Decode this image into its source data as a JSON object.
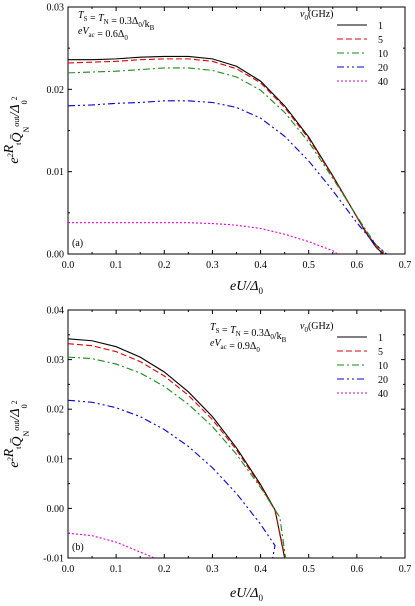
{
  "chart_data": [
    {
      "type": "line",
      "panel_label": "(a)",
      "annotations": [
        "T_S = T_N = 0.3Δ_0/k_B",
        "eV_ac = 0.6Δ_0"
      ],
      "xlabel": "eU/Δ_0",
      "ylabel": "e²R_t Q̄_N^out/Δ_0²",
      "xlim": [
        0.0,
        0.7
      ],
      "ylim": [
        0.0,
        0.03
      ],
      "x_ticks": [
        "0.0",
        "0.1",
        "0.2",
        "0.3",
        "0.4",
        "0.5",
        "0.6",
        "0.7"
      ],
      "y_ticks": [
        "0.00",
        "0.01",
        "0.02",
        "0.03"
      ],
      "legend_title": "ν_0(GHz)",
      "legend_position": "top-right",
      "series": [
        {
          "name": "1",
          "color": "#000000",
          "dash": "solid",
          "x": [
            0,
            0.05,
            0.1,
            0.15,
            0.2,
            0.25,
            0.3,
            0.35,
            0.4,
            0.45,
            0.5,
            0.55,
            0.6,
            0.62,
            0.64,
            0.655
          ],
          "y": [
            0.0236,
            0.0236,
            0.0237,
            0.0239,
            0.024,
            0.024,
            0.0237,
            0.0228,
            0.021,
            0.018,
            0.0142,
            0.0095,
            0.0045,
            0.0025,
            0.0008,
            0.0
          ]
        },
        {
          "name": "5",
          "color": "#e00000",
          "dash": "dash",
          "x": [
            0,
            0.05,
            0.1,
            0.15,
            0.2,
            0.25,
            0.3,
            0.35,
            0.4,
            0.45,
            0.5,
            0.55,
            0.6,
            0.62,
            0.64,
            0.657
          ],
          "y": [
            0.0232,
            0.0233,
            0.0234,
            0.0236,
            0.0237,
            0.0237,
            0.0234,
            0.0225,
            0.0208,
            0.0178,
            0.014,
            0.0094,
            0.0045,
            0.0026,
            0.0009,
            0.0
          ]
        },
        {
          "name": "10",
          "color": "#1a8a1a",
          "dash": "dashdot",
          "x": [
            0,
            0.05,
            0.1,
            0.15,
            0.2,
            0.25,
            0.3,
            0.35,
            0.4,
            0.45,
            0.5,
            0.55,
            0.6,
            0.62,
            0.64,
            0.66
          ],
          "y": [
            0.022,
            0.0221,
            0.0222,
            0.0224,
            0.0226,
            0.0226,
            0.0223,
            0.0215,
            0.0199,
            0.0172,
            0.0136,
            0.0092,
            0.0046,
            0.0028,
            0.0011,
            0.0
          ]
        },
        {
          "name": "20",
          "color": "#0000cc",
          "dash": "dashdotdot",
          "x": [
            0,
            0.05,
            0.1,
            0.15,
            0.2,
            0.25,
            0.3,
            0.35,
            0.4,
            0.45,
            0.5,
            0.55,
            0.6,
            0.62,
            0.64,
            0.662
          ],
          "y": [
            0.018,
            0.0181,
            0.0183,
            0.0184,
            0.0186,
            0.0186,
            0.0184,
            0.0178,
            0.0165,
            0.0143,
            0.0113,
            0.0077,
            0.0038,
            0.0024,
            0.0011,
            0.0
          ]
        },
        {
          "name": "40",
          "color": "#dd00dd",
          "dash": "dot",
          "x": [
            0,
            0.05,
            0.1,
            0.15,
            0.2,
            0.25,
            0.3,
            0.35,
            0.4,
            0.45,
            0.5,
            0.55,
            0.56
          ],
          "y": [
            0.0038,
            0.0038,
            0.0038,
            0.0038,
            0.0038,
            0.0038,
            0.0037,
            0.0035,
            0.0031,
            0.0024,
            0.0015,
            0.0004,
            0.0
          ]
        }
      ]
    },
    {
      "type": "line",
      "panel_label": "(b)",
      "annotations": [
        "T_S = T_N = 0.3Δ_0/k_B",
        "eV_ac = 0.9Δ_0"
      ],
      "xlabel": "eU/Δ_0",
      "ylabel": "e²R_t Q̄_N^out/Δ_0²",
      "xlim": [
        0.0,
        0.7
      ],
      "ylim": [
        -0.01,
        0.04
      ],
      "x_ticks": [
        "0.0",
        "0.1",
        "0.2",
        "0.3",
        "0.4",
        "0.5",
        "0.6",
        "0.7"
      ],
      "y_ticks": [
        "-0.01",
        "0.00",
        "0.01",
        "0.02",
        "0.03",
        "0.04"
      ],
      "legend_title": "ν_0(GHz)",
      "legend_position": "top-right",
      "series": [
        {
          "name": "1",
          "color": "#000000",
          "dash": "solid",
          "x": [
            0,
            0.05,
            0.1,
            0.15,
            0.2,
            0.25,
            0.3,
            0.35,
            0.4,
            0.43,
            0.45
          ],
          "y": [
            0.0342,
            0.0338,
            0.0326,
            0.0305,
            0.0275,
            0.0235,
            0.0185,
            0.0122,
            0.0048,
            -0.0003,
            -0.01
          ]
        },
        {
          "name": "5",
          "color": "#e00000",
          "dash": "dash",
          "x": [
            0,
            0.05,
            0.1,
            0.15,
            0.2,
            0.25,
            0.3,
            0.35,
            0.4,
            0.43,
            0.451
          ],
          "y": [
            0.0332,
            0.0328,
            0.0316,
            0.0296,
            0.0267,
            0.0228,
            0.0179,
            0.0118,
            0.0045,
            -0.0004,
            -0.01
          ]
        },
        {
          "name": "10",
          "color": "#1a8a1a",
          "dash": "dashdot",
          "x": [
            0,
            0.05,
            0.1,
            0.15,
            0.2,
            0.25,
            0.3,
            0.35,
            0.4,
            0.44,
            0.452
          ],
          "y": [
            0.0305,
            0.0302,
            0.0291,
            0.0273,
            0.0246,
            0.021,
            0.0165,
            0.0109,
            0.0042,
            -0.0018,
            -0.01
          ]
        },
        {
          "name": "20",
          "color": "#0000cc",
          "dash": "dashdotdot",
          "x": [
            0,
            0.05,
            0.1,
            0.15,
            0.2,
            0.25,
            0.3,
            0.35,
            0.4,
            0.43,
            0.425
          ],
          "y": [
            0.0218,
            0.0214,
            0.0203,
            0.0185,
            0.0159,
            0.0125,
            0.0082,
            0.003,
            -0.0032,
            -0.0075,
            -0.01
          ]
        },
        {
          "name": "40",
          "color": "#dd00dd",
          "dash": "dot",
          "x": [
            0,
            0.05,
            0.1,
            0.15,
            0.18
          ],
          "y": [
            -0.005,
            -0.0055,
            -0.0068,
            -0.0088,
            -0.01
          ]
        }
      ]
    }
  ]
}
